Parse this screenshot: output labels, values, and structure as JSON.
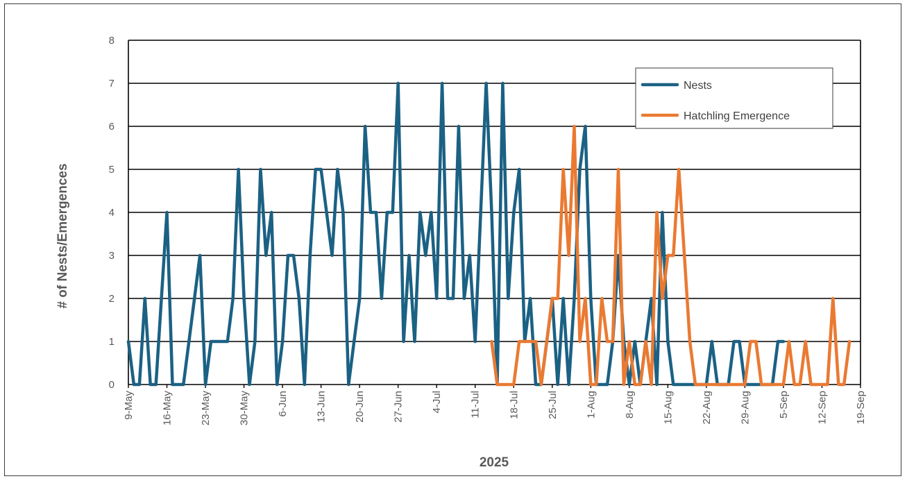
{
  "chart_data": {
    "type": "line",
    "title": "",
    "xlabel": "2025",
    "ylabel": "# of Nests/Emergences",
    "ylim": [
      0,
      8
    ],
    "y_ticks": [
      0,
      1,
      2,
      3,
      4,
      5,
      6,
      7,
      8
    ],
    "x_range": [
      "2025-05-09",
      "2025-09-19"
    ],
    "x_tick_labels": [
      "9-May",
      "16-May",
      "23-May",
      "30-May",
      "6-Jun",
      "13-Jun",
      "20-Jun",
      "27-Jun",
      "4-Jul",
      "11-Jul",
      "18-Jul",
      "25-Jul",
      "1-Aug",
      "8-Aug",
      "15-Aug",
      "22-Aug",
      "29-Aug",
      "5-Sep",
      "12-Sep",
      "19-Sep"
    ],
    "grid": "horizontal",
    "legend_position": "top-right",
    "series": [
      {
        "name": "Nests",
        "color": "#1b6184",
        "points": [
          [
            "2025-05-09",
            1
          ],
          [
            "2025-05-10",
            0
          ],
          [
            "2025-05-11",
            0
          ],
          [
            "2025-05-12",
            2
          ],
          [
            "2025-05-13",
            0
          ],
          [
            "2025-05-14",
            0
          ],
          [
            "2025-05-15",
            2
          ],
          [
            "2025-05-16",
            4
          ],
          [
            "2025-05-17",
            0
          ],
          [
            "2025-05-18",
            0
          ],
          [
            "2025-05-19",
            0
          ],
          [
            "2025-05-20",
            1
          ],
          [
            "2025-05-21",
            2
          ],
          [
            "2025-05-22",
            3
          ],
          [
            "2025-05-23",
            0
          ],
          [
            "2025-05-24",
            1
          ],
          [
            "2025-05-25",
            1
          ],
          [
            "2025-05-26",
            1
          ],
          [
            "2025-05-27",
            1
          ],
          [
            "2025-05-28",
            2
          ],
          [
            "2025-05-29",
            5
          ],
          [
            "2025-05-30",
            2
          ],
          [
            "2025-05-31",
            0
          ],
          [
            "2025-06-01",
            1
          ],
          [
            "2025-06-02",
            5
          ],
          [
            "2025-06-03",
            3
          ],
          [
            "2025-06-04",
            4
          ],
          [
            "2025-06-05",
            0
          ],
          [
            "2025-06-06",
            1
          ],
          [
            "2025-06-07",
            3
          ],
          [
            "2025-06-08",
            3
          ],
          [
            "2025-06-09",
            2
          ],
          [
            "2025-06-10",
            0
          ],
          [
            "2025-06-11",
            3
          ],
          [
            "2025-06-12",
            5
          ],
          [
            "2025-06-13",
            5
          ],
          [
            "2025-06-14",
            4
          ],
          [
            "2025-06-15",
            3
          ],
          [
            "2025-06-16",
            5
          ],
          [
            "2025-06-17",
            4
          ],
          [
            "2025-06-18",
            0
          ],
          [
            "2025-06-19",
            1
          ],
          [
            "2025-06-20",
            2
          ],
          [
            "2025-06-21",
            6
          ],
          [
            "2025-06-22",
            4
          ],
          [
            "2025-06-23",
            4
          ],
          [
            "2025-06-24",
            2
          ],
          [
            "2025-06-25",
            4
          ],
          [
            "2025-06-26",
            4
          ],
          [
            "2025-06-27",
            7
          ],
          [
            "2025-06-28",
            1
          ],
          [
            "2025-06-29",
            3
          ],
          [
            "2025-06-30",
            1
          ],
          [
            "2025-07-01",
            4
          ],
          [
            "2025-07-02",
            3
          ],
          [
            "2025-07-03",
            4
          ],
          [
            "2025-07-04",
            2
          ],
          [
            "2025-07-05",
            7
          ],
          [
            "2025-07-06",
            2
          ],
          [
            "2025-07-07",
            2
          ],
          [
            "2025-07-08",
            6
          ],
          [
            "2025-07-09",
            2
          ],
          [
            "2025-07-10",
            3
          ],
          [
            "2025-07-11",
            1
          ],
          [
            "2025-07-12",
            4
          ],
          [
            "2025-07-13",
            7
          ],
          [
            "2025-07-14",
            4
          ],
          [
            "2025-07-15",
            0
          ],
          [
            "2025-07-16",
            7
          ],
          [
            "2025-07-17",
            2
          ],
          [
            "2025-07-18",
            4
          ],
          [
            "2025-07-19",
            5
          ],
          [
            "2025-07-20",
            1
          ],
          [
            "2025-07-21",
            2
          ],
          [
            "2025-07-22",
            0
          ],
          [
            "2025-07-23",
            0
          ],
          [
            "2025-07-24",
            1
          ],
          [
            "2025-07-25",
            2
          ],
          [
            "2025-07-26",
            0
          ],
          [
            "2025-07-27",
            2
          ],
          [
            "2025-07-28",
            0
          ],
          [
            "2025-07-29",
            2
          ],
          [
            "2025-07-30",
            5
          ],
          [
            "2025-07-31",
            6
          ],
          [
            "2025-08-01",
            2
          ],
          [
            "2025-08-02",
            0
          ],
          [
            "2025-08-03",
            0
          ],
          [
            "2025-08-04",
            0
          ],
          [
            "2025-08-05",
            1
          ],
          [
            "2025-08-06",
            3
          ],
          [
            "2025-08-07",
            1
          ],
          [
            "2025-08-08",
            0
          ],
          [
            "2025-08-09",
            1
          ],
          [
            "2025-08-10",
            0
          ],
          [
            "2025-08-11",
            1
          ],
          [
            "2025-08-12",
            2
          ],
          [
            "2025-08-13",
            0
          ],
          [
            "2025-08-14",
            4
          ],
          [
            "2025-08-15",
            1
          ],
          [
            "2025-08-16",
            0
          ],
          [
            "2025-08-17",
            0
          ],
          [
            "2025-08-18",
            0
          ],
          [
            "2025-08-19",
            0
          ],
          [
            "2025-08-20",
            0
          ],
          [
            "2025-08-21",
            0
          ],
          [
            "2025-08-22",
            0
          ],
          [
            "2025-08-23",
            1
          ],
          [
            "2025-08-24",
            0
          ],
          [
            "2025-08-25",
            0
          ],
          [
            "2025-08-26",
            0
          ],
          [
            "2025-08-27",
            1
          ],
          [
            "2025-08-28",
            1
          ],
          [
            "2025-08-29",
            0
          ],
          [
            "2025-08-30",
            0
          ],
          [
            "2025-08-31",
            0
          ],
          [
            "2025-09-01",
            0
          ],
          [
            "2025-09-02",
            0
          ],
          [
            "2025-09-03",
            0
          ],
          [
            "2025-09-04",
            1
          ],
          [
            "2025-09-05",
            1
          ]
        ]
      },
      {
        "name": "Hatchling Emergence",
        "color": "#ea7a32",
        "points": [
          [
            "2025-07-14",
            1
          ],
          [
            "2025-07-15",
            0
          ],
          [
            "2025-07-16",
            0
          ],
          [
            "2025-07-17",
            0
          ],
          [
            "2025-07-18",
            0
          ],
          [
            "2025-07-19",
            1
          ],
          [
            "2025-07-20",
            1
          ],
          [
            "2025-07-21",
            1
          ],
          [
            "2025-07-22",
            1
          ],
          [
            "2025-07-23",
            0
          ],
          [
            "2025-07-24",
            1
          ],
          [
            "2025-07-25",
            2
          ],
          [
            "2025-07-26",
            2
          ],
          [
            "2025-07-27",
            5
          ],
          [
            "2025-07-28",
            3
          ],
          [
            "2025-07-29",
            6
          ],
          [
            "2025-07-30",
            1
          ],
          [
            "2025-07-31",
            2
          ],
          [
            "2025-08-01",
            0
          ],
          [
            "2025-08-02",
            0
          ],
          [
            "2025-08-03",
            2
          ],
          [
            "2025-08-04",
            1
          ],
          [
            "2025-08-05",
            1
          ],
          [
            "2025-08-06",
            5
          ],
          [
            "2025-08-07",
            0
          ],
          [
            "2025-08-08",
            1
          ],
          [
            "2025-08-09",
            0
          ],
          [
            "2025-08-10",
            0
          ],
          [
            "2025-08-11",
            1
          ],
          [
            "2025-08-12",
            0
          ],
          [
            "2025-08-13",
            4
          ],
          [
            "2025-08-14",
            2
          ],
          [
            "2025-08-15",
            3
          ],
          [
            "2025-08-16",
            3
          ],
          [
            "2025-08-17",
            5
          ],
          [
            "2025-08-18",
            3
          ],
          [
            "2025-08-19",
            1
          ],
          [
            "2025-08-20",
            0
          ],
          [
            "2025-08-21",
            0
          ],
          [
            "2025-08-22",
            0
          ],
          [
            "2025-08-23",
            0
          ],
          [
            "2025-08-24",
            0
          ],
          [
            "2025-08-25",
            0
          ],
          [
            "2025-08-26",
            0
          ],
          [
            "2025-08-27",
            0
          ],
          [
            "2025-08-28",
            0
          ],
          [
            "2025-08-29",
            0
          ],
          [
            "2025-08-30",
            1
          ],
          [
            "2025-08-31",
            1
          ],
          [
            "2025-09-01",
            0
          ],
          [
            "2025-09-02",
            0
          ],
          [
            "2025-09-03",
            0
          ],
          [
            "2025-09-04",
            0
          ],
          [
            "2025-09-05",
            0
          ],
          [
            "2025-09-06",
            1
          ],
          [
            "2025-09-07",
            0
          ],
          [
            "2025-09-08",
            0
          ],
          [
            "2025-09-09",
            1
          ],
          [
            "2025-09-10",
            0
          ],
          [
            "2025-09-11",
            0
          ],
          [
            "2025-09-12",
            0
          ],
          [
            "2025-09-13",
            0
          ],
          [
            "2025-09-14",
            2
          ],
          [
            "2025-09-15",
            0
          ],
          [
            "2025-09-16",
            0
          ],
          [
            "2025-09-17",
            1
          ]
        ]
      }
    ]
  }
}
